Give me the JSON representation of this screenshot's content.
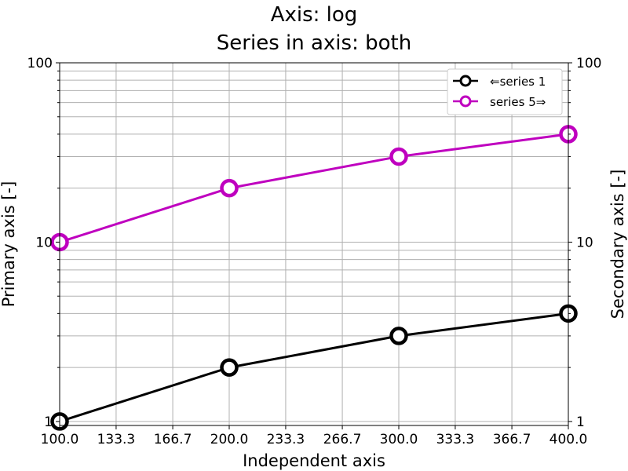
{
  "chart_data": {
    "type": "line",
    "title_lines": [
      "Axis: log",
      "Series in axis: both"
    ],
    "xlabel": "Independent axis",
    "ylabel": "Primary axis [-]",
    "y2label": "Secondary axis [-]",
    "xlim": [
      100,
      400
    ],
    "x_ticks": [
      "100.0",
      "133.3",
      "166.7",
      "200.0",
      "233.3",
      "266.7",
      "300.0",
      "333.3",
      "366.7",
      "400.0"
    ],
    "y_scale": "log",
    "ylim": [
      0.95,
      100
    ],
    "y_ticks": [
      "1",
      "10",
      "100"
    ],
    "y2_ticks": [
      "1",
      "10",
      "100"
    ],
    "grid": true,
    "legend_position": "top-right",
    "series": [
      {
        "name": "⇐series 1",
        "axis": "primary",
        "color": "#000000",
        "x": [
          100,
          200,
          300,
          400
        ],
        "y": [
          1,
          2,
          3,
          4
        ]
      },
      {
        "name": "series 5⇒",
        "axis": "secondary",
        "color": "#bf00bf",
        "x": [
          100,
          200,
          300,
          400
        ],
        "y": [
          10,
          20,
          30,
          40
        ]
      }
    ]
  }
}
